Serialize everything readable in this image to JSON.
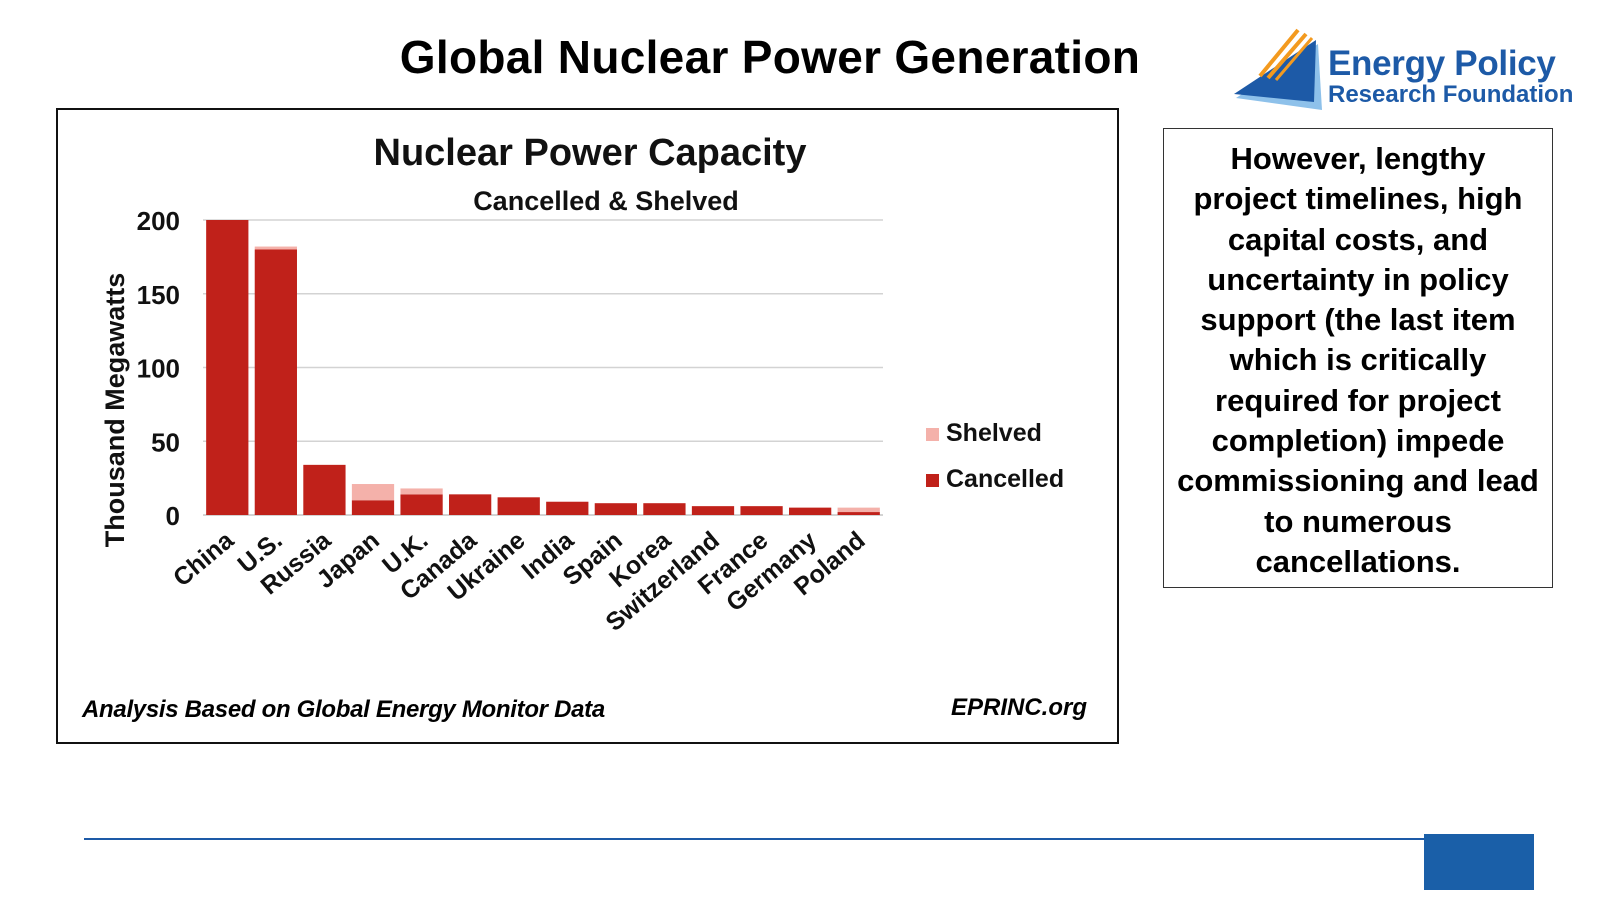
{
  "page": {
    "title": "Global Nuclear Power Generation"
  },
  "logo": {
    "line1": "Energy Policy",
    "line2": "Research Foundation",
    "colors": {
      "blue": "#1d5aa7",
      "orange": "#f39a1f",
      "light_blue": "#8ec1ea"
    }
  },
  "commentary": {
    "text": "However, lengthy project timelines, high capital costs, and uncertainty in policy support (the last item which is critically required for project completion) impede commissioning and lead to numerous cancellations."
  },
  "chart_footer": {
    "note": "Analysis Based on Global Energy Monitor Data",
    "site": "EPRINC.org"
  },
  "chart_data": {
    "type": "bar",
    "stacked": true,
    "title": "Nuclear Power Capacity",
    "subtitle": "Cancelled & Shelved",
    "xlabel": "",
    "ylabel": "Thousand Megawatts",
    "ylim": [
      0,
      200
    ],
    "yticks": [
      0,
      50,
      100,
      150,
      200
    ],
    "grid": true,
    "legend_position": "right",
    "categories": [
      "China",
      "U.S.",
      "Russia",
      "Japan",
      "U.K.",
      "Canada",
      "Ukraine",
      "India",
      "Spain",
      "Korea",
      "Switzerland",
      "France",
      "Germany",
      "Poland"
    ],
    "series": [
      {
        "name": "Cancelled",
        "color": "#c0211a",
        "values": [
          200,
          180,
          34,
          10,
          14,
          14,
          12,
          9,
          8,
          8,
          6,
          6,
          5,
          2
        ]
      },
      {
        "name": "Shelved",
        "color": "#f4b1aa",
        "values": [
          0,
          2,
          0,
          11,
          4,
          0,
          0,
          0,
          0,
          0,
          0,
          0,
          0,
          3
        ]
      }
    ],
    "legend_order": [
      "Shelved",
      "Cancelled"
    ]
  },
  "footer_bar": {
    "color": "#1a5fa8"
  }
}
